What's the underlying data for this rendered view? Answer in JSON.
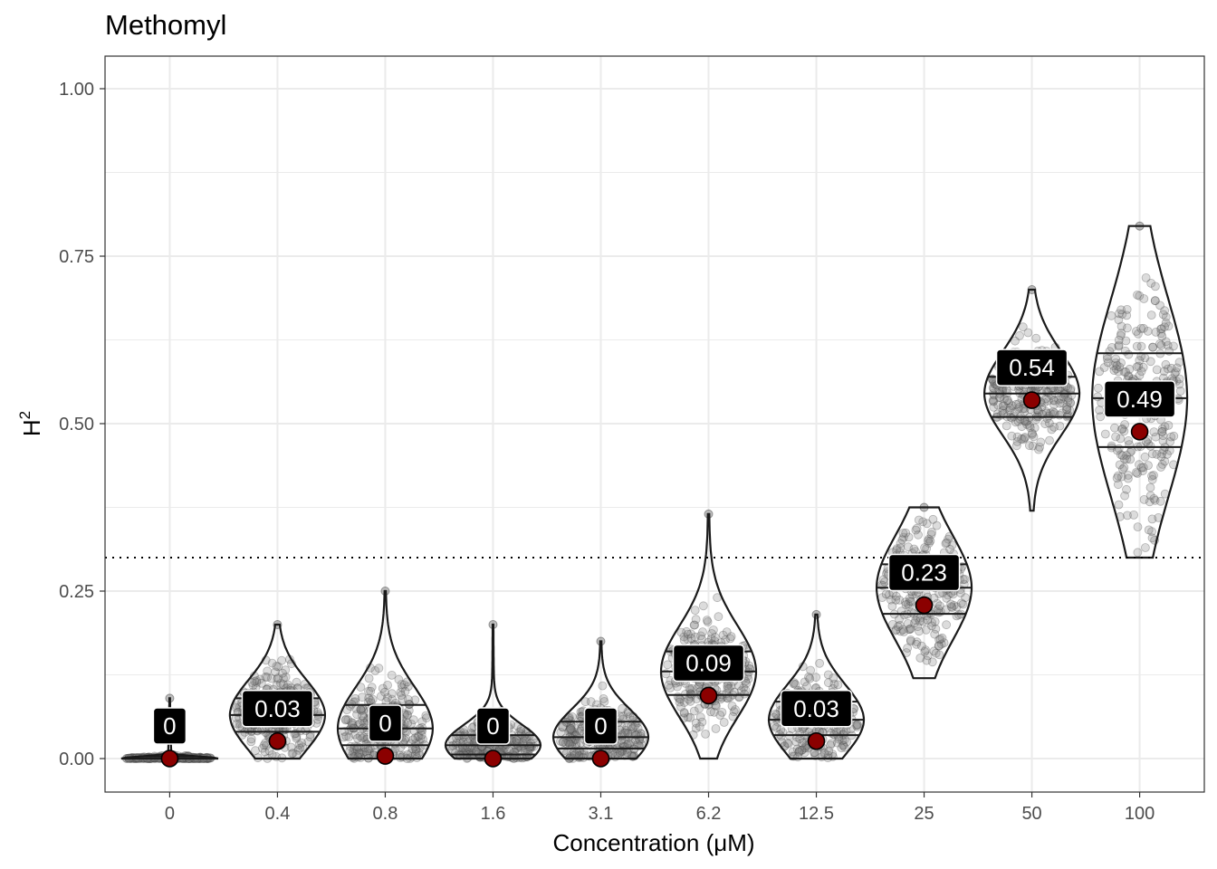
{
  "chart_data": {
    "type": "violin",
    "title": "Methomyl",
    "xlabel": "Concentration (μM)",
    "ylabel_base": "H",
    "ylabel_superscript": "2",
    "categories": [
      "0",
      "0.4",
      "0.8",
      "1.6",
      "3.1",
      "6.2",
      "12.5",
      "25",
      "50",
      "100"
    ],
    "ylim": [
      -0.05,
      1.05
    ],
    "yticks": [
      0.0,
      0.25,
      0.5,
      0.75,
      1.0
    ],
    "ytick_labels": [
      "0.00",
      "0.25",
      "0.50",
      "0.75",
      "1.00"
    ],
    "reference_line": 0.3,
    "grid": true,
    "series": [
      {
        "category": "0",
        "point_estimate": 0.0,
        "label": "0",
        "min": 0.0,
        "max": 0.09,
        "q1": 0.0,
        "median": 0.0,
        "q3": 0.003
      },
      {
        "category": "0.4",
        "point_estimate": 0.026,
        "label": "0.03",
        "min": 0.0,
        "max": 0.2,
        "q1": 0.04,
        "median": 0.065,
        "q3": 0.09
      },
      {
        "category": "0.8",
        "point_estimate": 0.004,
        "label": "0",
        "min": 0.0,
        "max": 0.25,
        "q1": 0.02,
        "median": 0.045,
        "q3": 0.08
      },
      {
        "category": "1.6",
        "point_estimate": 0.0,
        "label": "0",
        "min": 0.0,
        "max": 0.2,
        "q1": 0.006,
        "median": 0.02,
        "q3": 0.035
      },
      {
        "category": "3.1",
        "point_estimate": 0.0,
        "label": "0",
        "min": 0.0,
        "max": 0.175,
        "q1": 0.015,
        "median": 0.032,
        "q3": 0.055
      },
      {
        "category": "6.2",
        "point_estimate": 0.094,
        "label": "0.09",
        "min": 0.0,
        "max": 0.365,
        "q1": 0.095,
        "median": 0.13,
        "q3": 0.16
      },
      {
        "category": "12.5",
        "point_estimate": 0.026,
        "label": "0.03",
        "min": 0.0,
        "max": 0.215,
        "q1": 0.035,
        "median": 0.058,
        "q3": 0.085
      },
      {
        "category": "25",
        "point_estimate": 0.229,
        "label": "0.23",
        "min": 0.12,
        "max": 0.375,
        "q1": 0.216,
        "median": 0.255,
        "q3": 0.29
      },
      {
        "category": "50",
        "point_estimate": 0.535,
        "label": "0.54",
        "min": 0.37,
        "max": 0.7,
        "q1": 0.51,
        "median": 0.545,
        "q3": 0.57
      },
      {
        "category": "100",
        "point_estimate": 0.488,
        "label": "0.49",
        "min": 0.3,
        "max": 0.795,
        "q1": 0.465,
        "median": 0.538,
        "q3": 0.605
      }
    ]
  },
  "colors": {
    "point_estimate": "#8b0000",
    "label_bg": "#000000",
    "label_text": "#ffffff",
    "jitter_points": "#808080",
    "violin_stroke": "#1a1a1a",
    "grid": "#ebebeb"
  }
}
